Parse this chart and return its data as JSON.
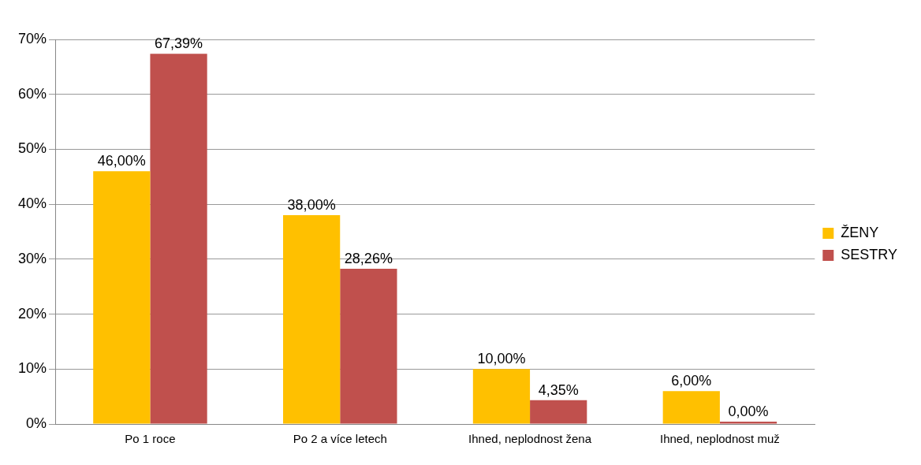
{
  "chart_data": {
    "type": "bar",
    "categories": [
      "Po 1 roce",
      "Po 2 a více letech",
      "Ihned, neplodnost žena",
      "Ihned, neplodnost muž"
    ],
    "series": [
      {
        "name": "ŽENY",
        "color": "#ffc000",
        "values": [
          46,
          38,
          10,
          6
        ],
        "value_labels": [
          "46,00%",
          "38,00%",
          "10,00%",
          "6,00%"
        ]
      },
      {
        "name": "SESTRY",
        "color": "#c0504d",
        "values": [
          67.39,
          28.26,
          4.35,
          0
        ],
        "value_labels": [
          "67,39%",
          "28,26%",
          "4,35%",
          "0,00%"
        ]
      }
    ],
    "ylim": [
      0,
      70
    ],
    "yticks": [
      {
        "value": 0,
        "label": "0%"
      },
      {
        "value": 10,
        "label": "10%"
      },
      {
        "value": 20,
        "label": "20%"
      },
      {
        "value": 30,
        "label": "30%"
      },
      {
        "value": 40,
        "label": "40%"
      },
      {
        "value": 50,
        "label": "50%"
      },
      {
        "value": 60,
        "label": "60%"
      },
      {
        "value": 70,
        "label": "70%"
      }
    ],
    "grid": "y",
    "legend": "right"
  }
}
